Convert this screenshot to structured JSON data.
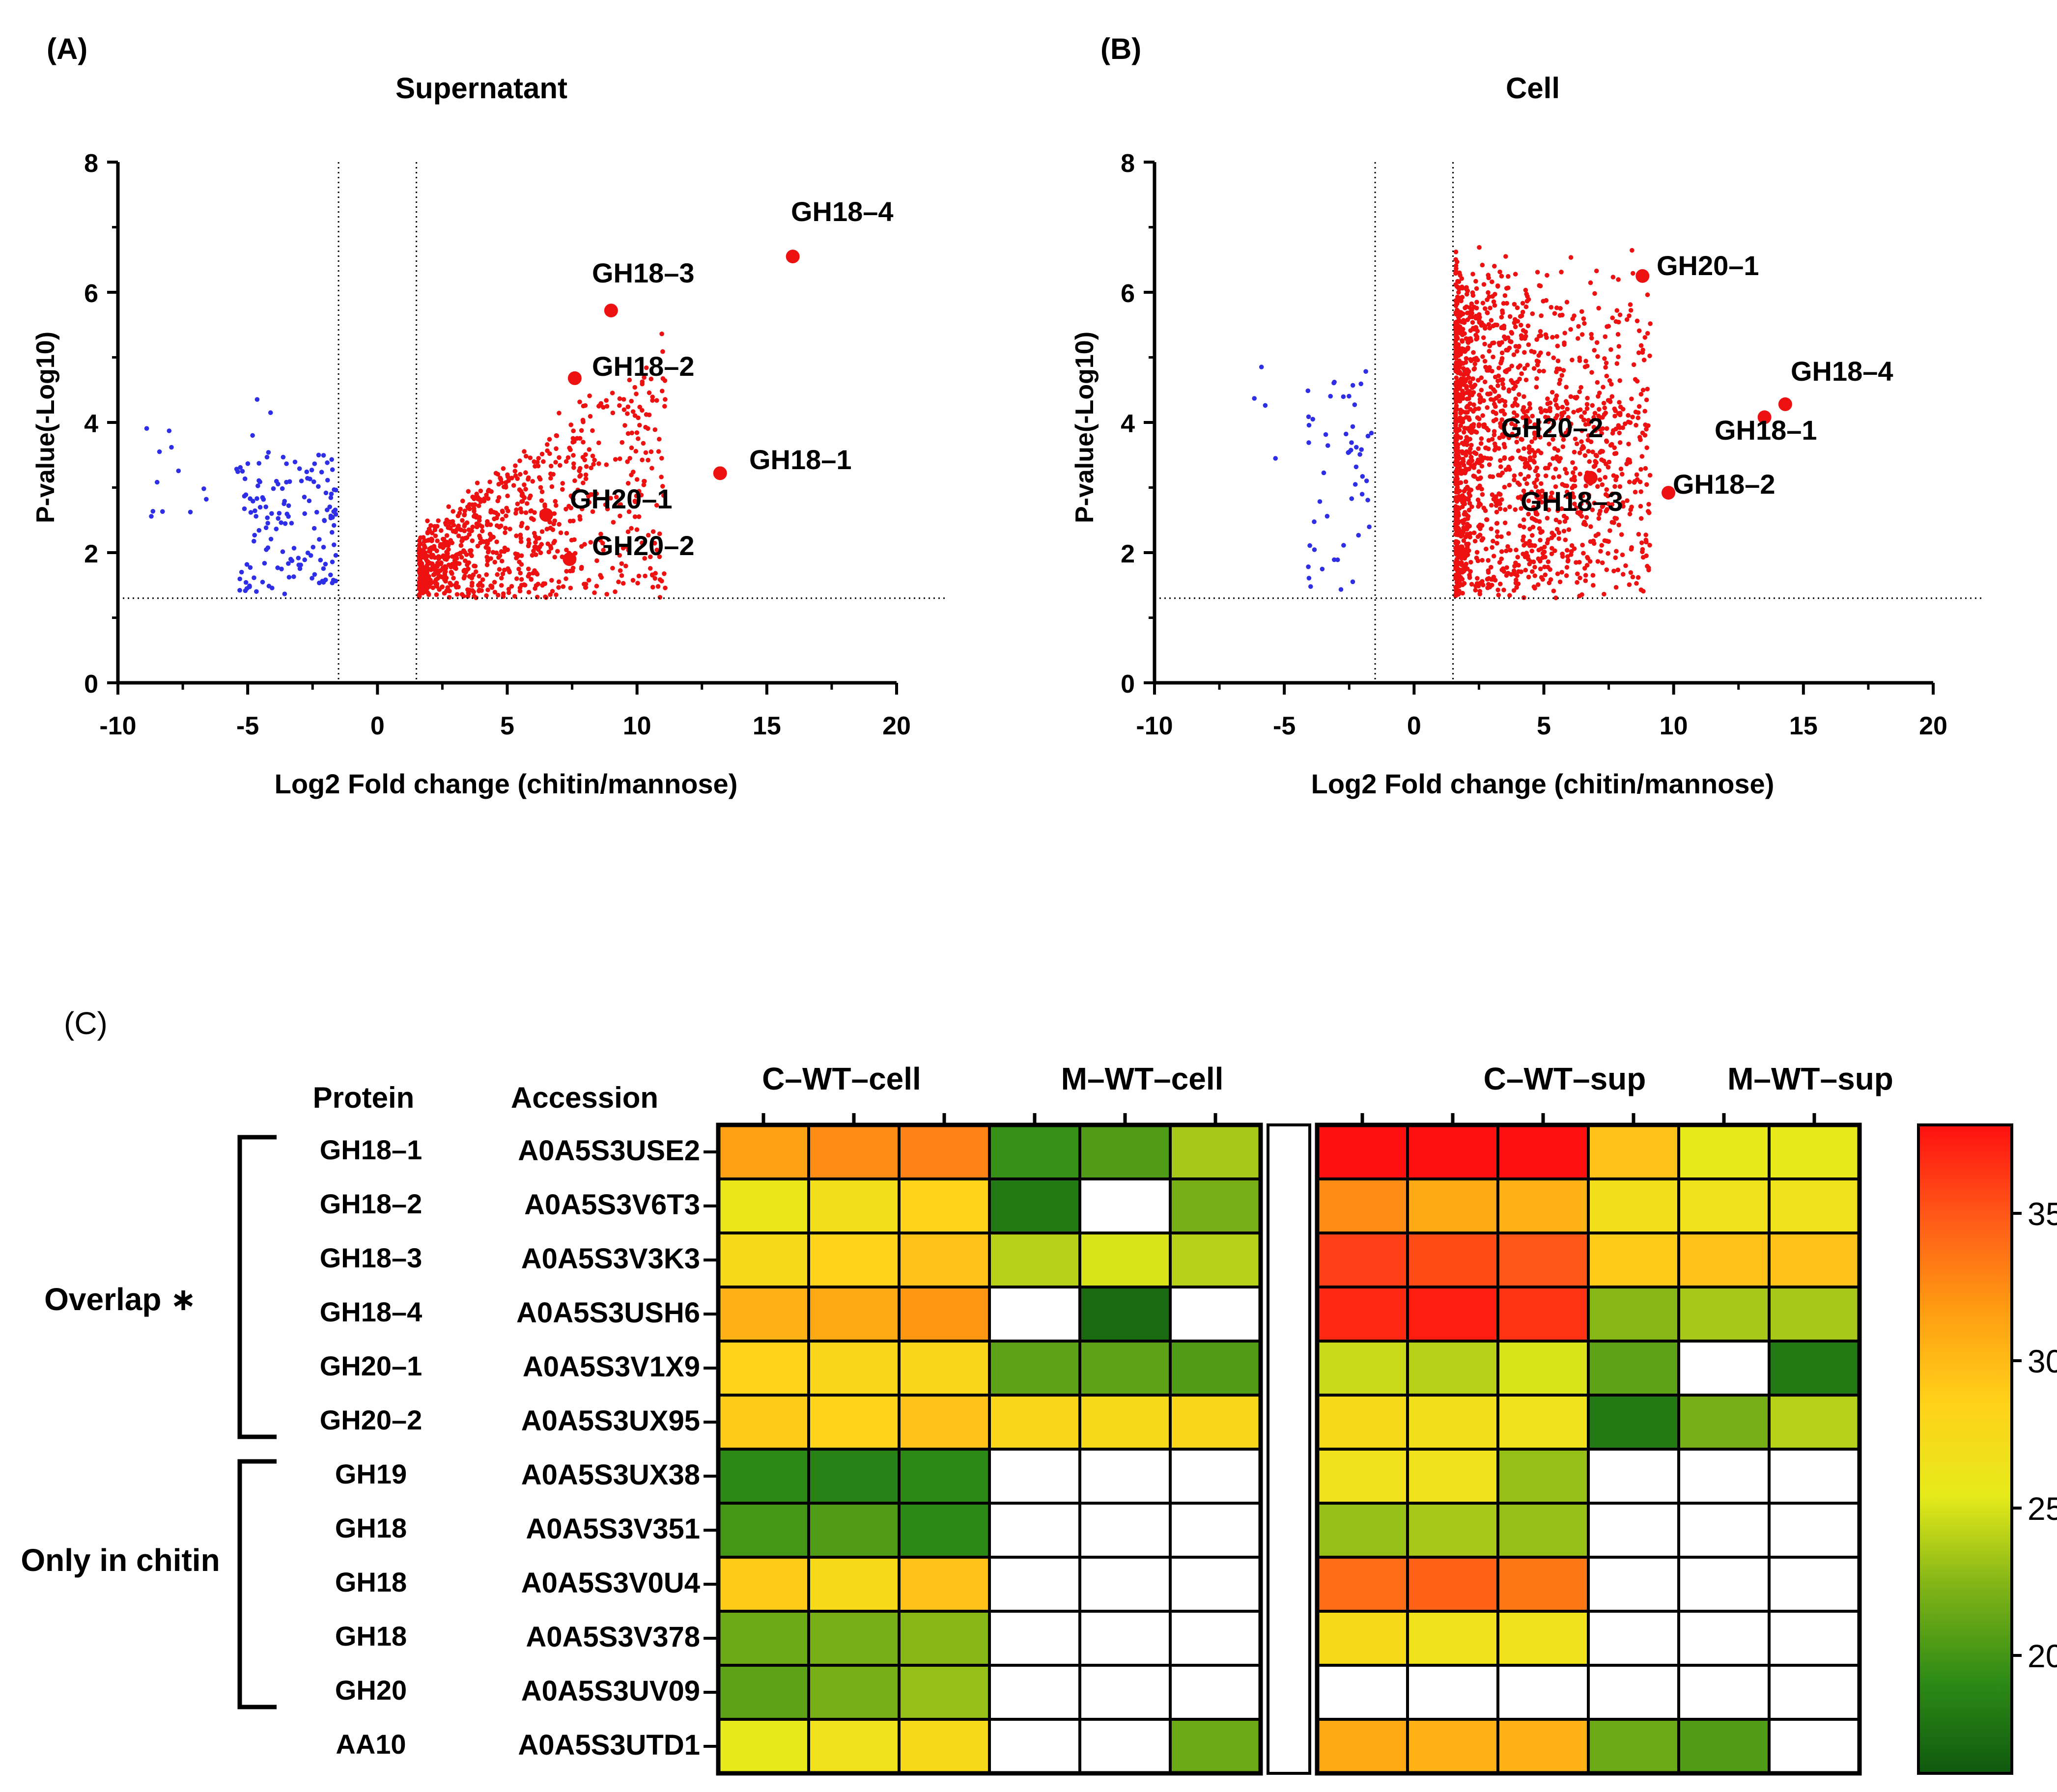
{
  "chart_data": [
    {
      "type": "scatter",
      "panel": "(A)",
      "title": "Supernatant",
      "xlabel": "Log2 Fold change (chitin/mannose)",
      "ylabel": "P-value(-Log10)",
      "xlim": [
        -10,
        20
      ],
      "ylim": [
        0,
        8
      ],
      "xticks": [
        -10,
        -5,
        0,
        5,
        10,
        15,
        20
      ],
      "yticks": [
        0,
        2,
        4,
        6,
        8
      ],
      "thresholds": {
        "fold_change": [
          -1.5,
          1.5
        ],
        "p_value": 1.3
      },
      "cloud_colors": {
        "down": "#2e2ee6",
        "up": "#ee1111"
      },
      "highlight_color": "#ee1111",
      "highlights": [
        {
          "label": "GH18–4",
          "x": 16.0,
          "y": 6.55
        },
        {
          "label": "GH18–3",
          "x": 9.0,
          "y": 5.72
        },
        {
          "label": "GH18–2",
          "x": 7.6,
          "y": 4.68
        },
        {
          "label": "GH18–1",
          "x": 13.2,
          "y": 3.22
        },
        {
          "label": "GH20–1",
          "x": 6.5,
          "y": 2.58
        },
        {
          "label": "GH20–2",
          "x": 7.4,
          "y": 1.9
        }
      ]
    },
    {
      "type": "scatter",
      "panel": "(B)",
      "title": "Cell",
      "xlabel": "Log2 Fold change (chitin/mannose)",
      "ylabel": "P-value(-Log10)",
      "xlim": [
        -10,
        20
      ],
      "ylim": [
        0,
        8
      ],
      "xticks": [
        -10,
        -5,
        0,
        5,
        10,
        15,
        20
      ],
      "yticks": [
        0,
        2,
        4,
        6,
        8
      ],
      "thresholds": {
        "fold_change": [
          -1.5,
          1.5
        ],
        "p_value": 1.3
      },
      "cloud_colors": {
        "down": "#2e2ee6",
        "up": "#ee1111"
      },
      "highlight_color": "#ee1111",
      "highlights": [
        {
          "label": "GH20–1",
          "x": 8.8,
          "y": 6.25
        },
        {
          "label": "GH18–4",
          "x": 14.3,
          "y": 4.28
        },
        {
          "label": "GH18–1",
          "x": 13.5,
          "y": 4.08
        },
        {
          "label": "GH20–2",
          "x": 6.8,
          "y": 3.15
        },
        {
          "label": "GH18–3",
          "x": 6.8,
          "y": 3.15
        },
        {
          "label": "GH18–2",
          "x": 9.8,
          "y": 2.92
        }
      ]
    },
    {
      "type": "heatmap",
      "panel": "(C)",
      "column_header_protein": "Protein",
      "column_header_accession": "Accession",
      "column_groups": [
        "C–WT–cell",
        "M–WT–cell",
        "C–WT–sup",
        "M–WT–sup"
      ],
      "row_groups": [
        {
          "label": "Overlap ∗",
          "rows": [
            0,
            5
          ]
        },
        {
          "label": "Only in chitin",
          "rows": [
            6,
            10
          ]
        }
      ],
      "rows": [
        {
          "protein": "GH18–1",
          "accession": "A0A5S3USE2",
          "values": [
            31.5,
            32.5,
            33,
            19.5,
            20.5,
            23.5,
            38,
            38,
            38,
            29.5,
            25.5,
            25.5
          ]
        },
        {
          "protein": "GH18–2",
          "accession": "A0A5S3V6T3",
          "values": [
            26,
            27,
            28.5,
            18,
            null,
            22,
            32.5,
            31,
            30.5,
            27,
            26.5,
            26.5
          ]
        },
        {
          "protein": "GH18–3",
          "accession": "A0A5S3V3K3",
          "values": [
            27.5,
            28.5,
            29.5,
            24,
            25,
            24,
            36,
            35.5,
            35,
            29,
            29.5,
            29.5
          ]
        },
        {
          "protein": "GH18–4",
          "accession": "A0A5S3USH6",
          "values": [
            30.5,
            31,
            32,
            null,
            17,
            null,
            37,
            37.5,
            36.5,
            22.5,
            23.5,
            23.5
          ]
        },
        {
          "protein": "GH20–1",
          "accession": "A0A5S3V1X9",
          "values": [
            28.5,
            28,
            28,
            21,
            21,
            20.5,
            24.5,
            24,
            25,
            21,
            null,
            18
          ]
        },
        {
          "protein": "GH20–2",
          "accession": "A0A5S3UX95",
          "values": [
            29,
            28.5,
            29.5,
            28,
            27.5,
            28,
            27.5,
            27,
            26.5,
            18,
            22,
            24
          ]
        },
        {
          "protein": "GH19",
          "accession": "A0A5S3UX38",
          "values": [
            19,
            18.5,
            19,
            null,
            null,
            null,
            26.5,
            26.5,
            23,
            null,
            null,
            null
          ]
        },
        {
          "protein": "GH18",
          "accession": "A0A5S3V351",
          "values": [
            20,
            20.5,
            19,
            null,
            null,
            null,
            23,
            23.5,
            23,
            null,
            null,
            null
          ]
        },
        {
          "protein": "GH18",
          "accession": "A0A5S3V0U4",
          "values": [
            29,
            27.5,
            29.5,
            null,
            null,
            null,
            34,
            34.5,
            33.5,
            null,
            null,
            null
          ]
        },
        {
          "protein": "GH18",
          "accession": "A0A5S3V378",
          "values": [
            21.5,
            22,
            22.5,
            null,
            null,
            null,
            27.5,
            26.5,
            26.5,
            null,
            null,
            null
          ]
        },
        {
          "protein": "GH20",
          "accession": "A0A5S3UV09",
          "values": [
            21,
            22,
            23,
            null,
            null,
            null,
            null,
            null,
            null,
            null,
            null,
            null
          ]
        },
        {
          "protein": "AA10",
          "accession": "A0A5S3UTD1",
          "values": [
            25.5,
            26.5,
            27.5,
            null,
            null,
            21.5,
            31,
            30.5,
            30.5,
            21.5,
            20.5,
            null
          ]
        }
      ],
      "colorbar": {
        "min": 16,
        "max": 38,
        "ticks": [
          20,
          25,
          30,
          35
        ]
      },
      "colorscale": [
        "#0f5a0f",
        "#2e8b16",
        "#7fb317",
        "#e6ea1a",
        "#ffd21a",
        "#ff9d12",
        "#ff5a18",
        "#ff1010"
      ]
    }
  ]
}
